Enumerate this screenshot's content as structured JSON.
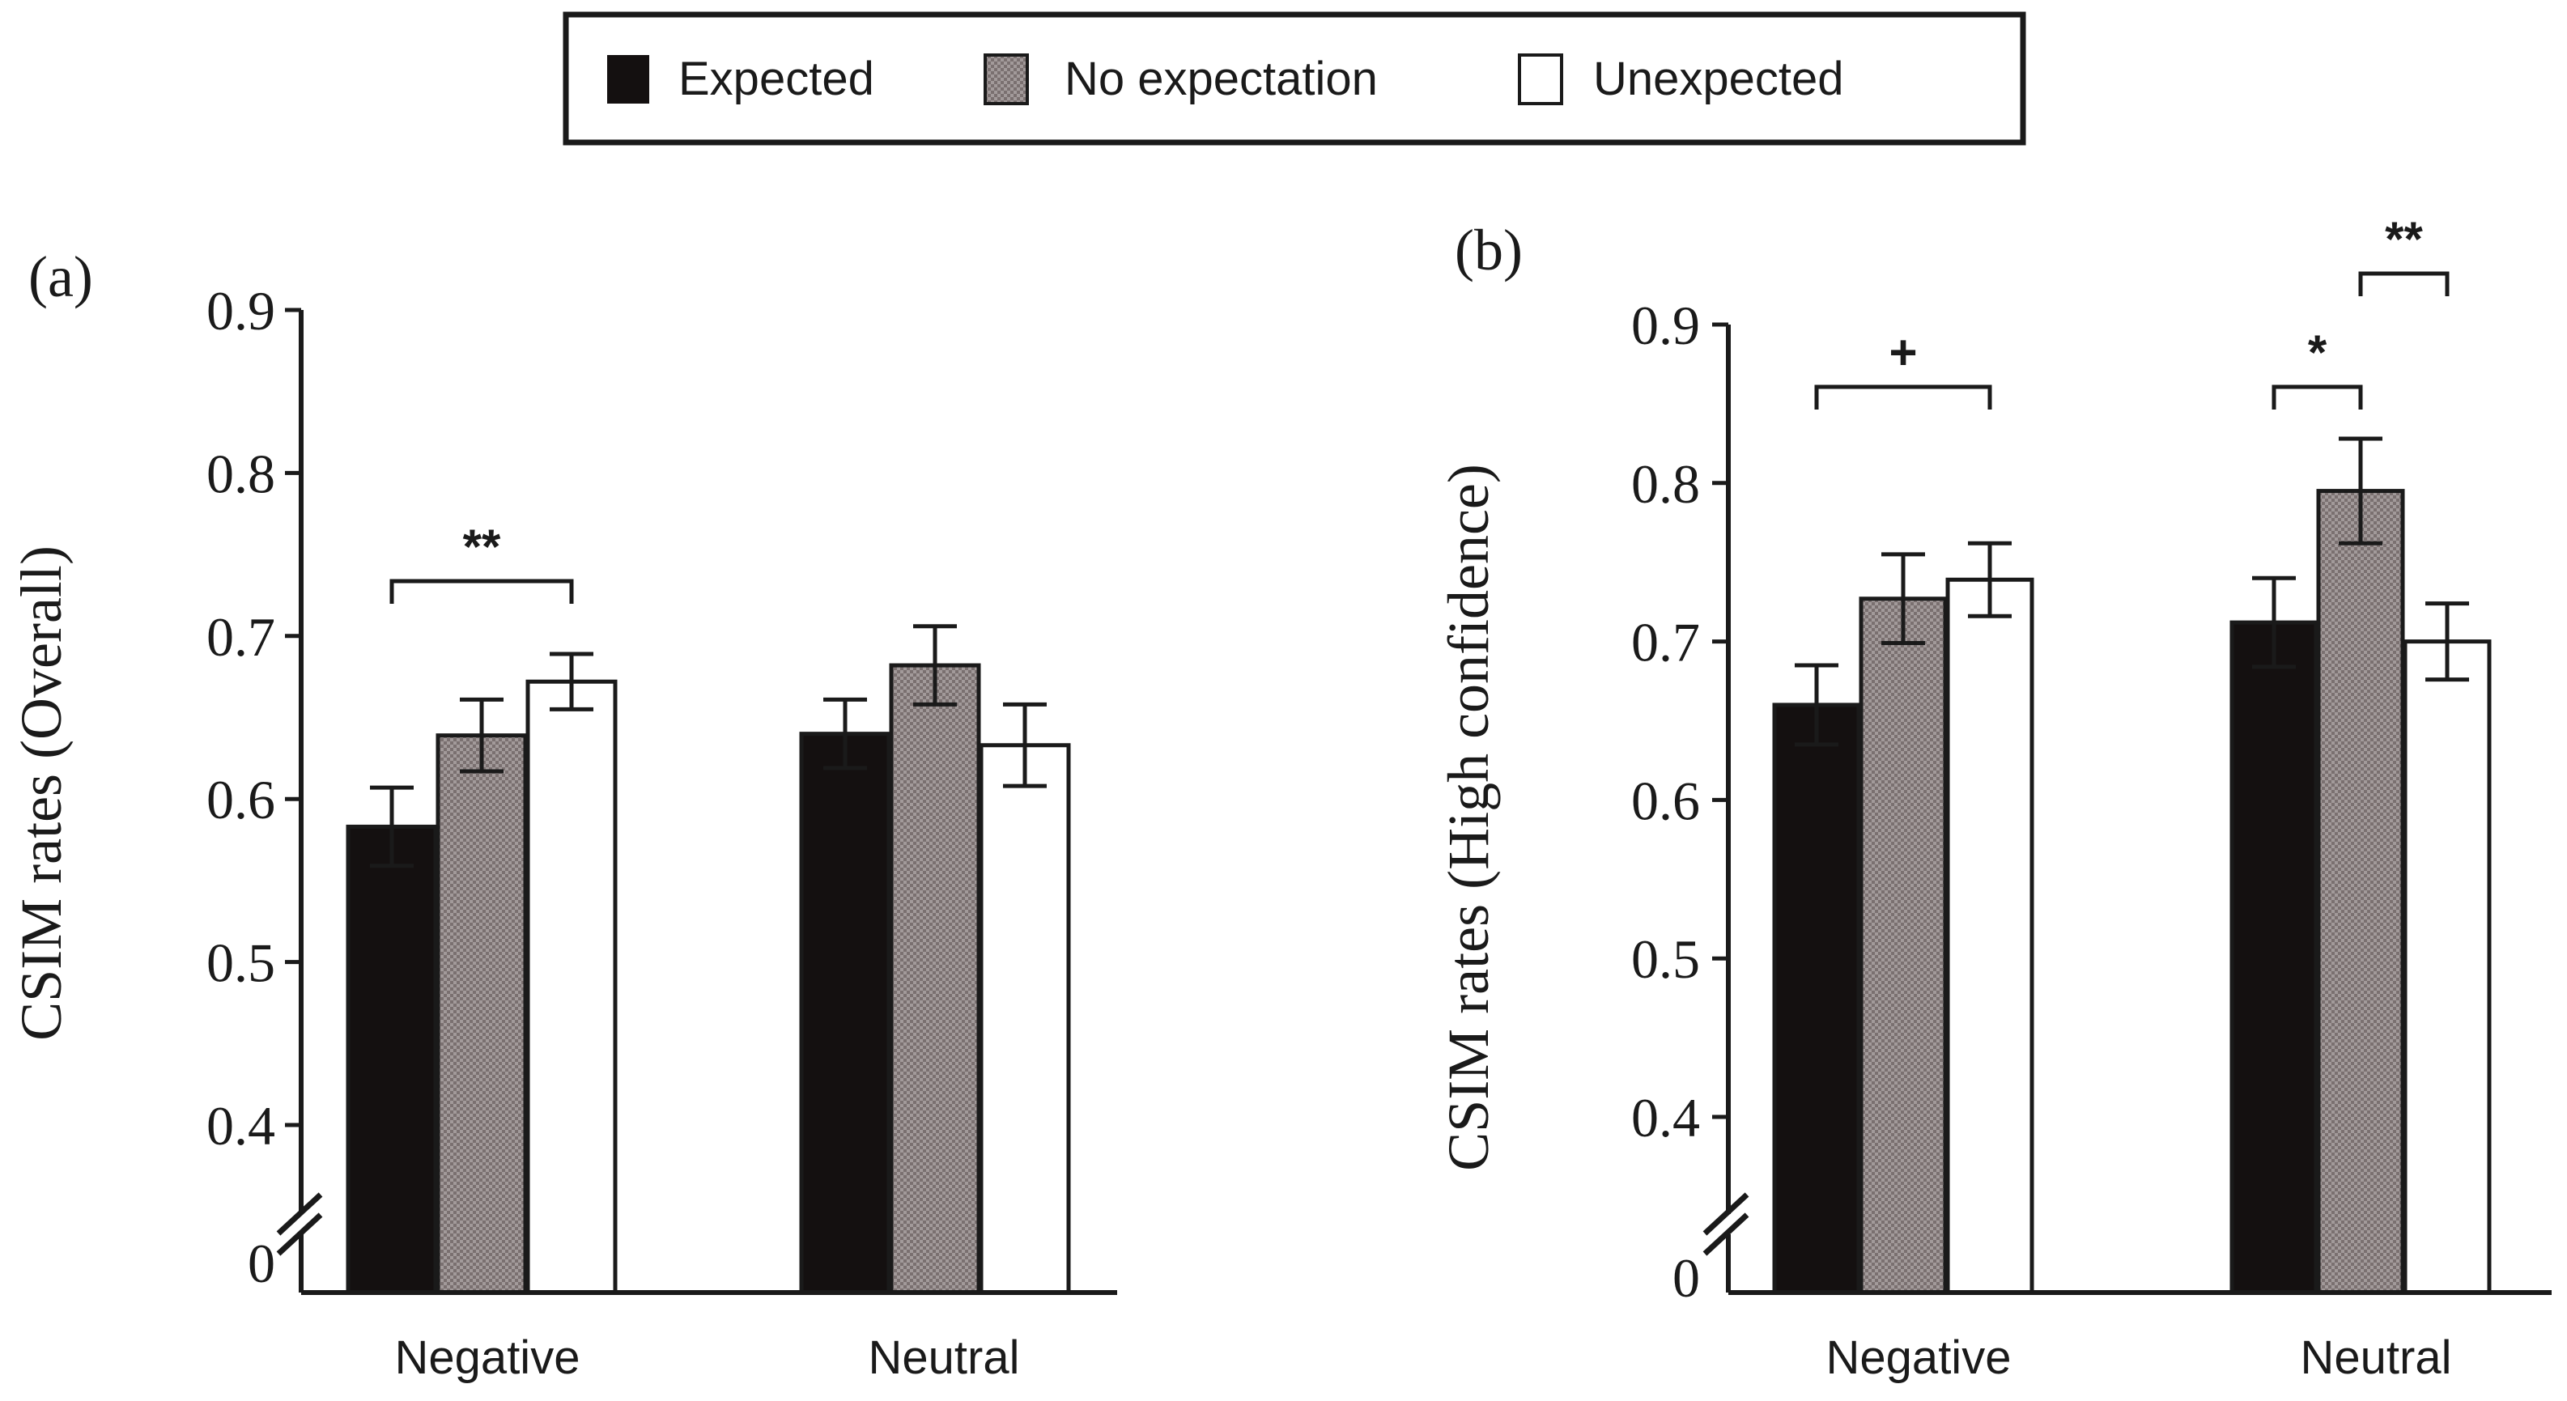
{
  "colors": {
    "expected": "#141010",
    "no_expectation": "#8f8585",
    "unexpected": "#ffffff",
    "ink": "#1a1a1a"
  },
  "legend": [
    "Expected",
    "No expectation",
    "Unexpected"
  ],
  "chart_data": [
    {
      "type": "bar",
      "panel_label": "(a)",
      "ylabel": "CSIM rates (Overall)",
      "categories": [
        "Negative",
        "Neutral"
      ],
      "series": [
        {
          "name": "Expected",
          "values": [
            0.583,
            0.64
          ],
          "errors": [
            0.024,
            0.021
          ]
        },
        {
          "name": "No expectation",
          "values": [
            0.639,
            0.682
          ],
          "errors": [
            0.022,
            0.024
          ]
        },
        {
          "name": "Unexpected",
          "values": [
            0.672,
            0.633
          ],
          "errors": [
            0.017,
            0.025
          ]
        }
      ],
      "ylim": [
        0.4,
        0.9
      ],
      "yticks": [
        "0",
        "0.4",
        "0.5",
        "0.6",
        "0.7",
        "0.8",
        "0.9"
      ],
      "axis_break": true,
      "significance": [
        {
          "category": "Negative",
          "from": "Expected",
          "to": "Unexpected",
          "label": "**"
        }
      ]
    },
    {
      "type": "bar",
      "panel_label": "(b)",
      "ylabel": "CSIM rates (High confidence)",
      "categories": [
        "Negative",
        "Neutral"
      ],
      "series": [
        {
          "name": "Expected",
          "values": [
            0.66,
            0.712
          ],
          "errors": [
            0.025,
            0.028
          ]
        },
        {
          "name": "No expectation",
          "values": [
            0.727,
            0.795
          ],
          "errors": [
            0.028,
            0.033
          ]
        },
        {
          "name": "Unexpected",
          "values": [
            0.739,
            0.7
          ],
          "errors": [
            0.023,
            0.024
          ]
        }
      ],
      "ylim": [
        0.4,
        0.9
      ],
      "yticks": [
        "0",
        "0.4",
        "0.5",
        "0.6",
        "0.7",
        "0.8",
        "0.9"
      ],
      "axis_break": true,
      "significance": [
        {
          "category": "Negative",
          "from": "Expected",
          "to": "Unexpected",
          "label": "+"
        },
        {
          "category": "Neutral",
          "from": "Expected",
          "to": "No expectation",
          "label": "*"
        },
        {
          "category": "Neutral",
          "from": "No expectation",
          "to": "Unexpected",
          "label": "**"
        }
      ]
    }
  ]
}
